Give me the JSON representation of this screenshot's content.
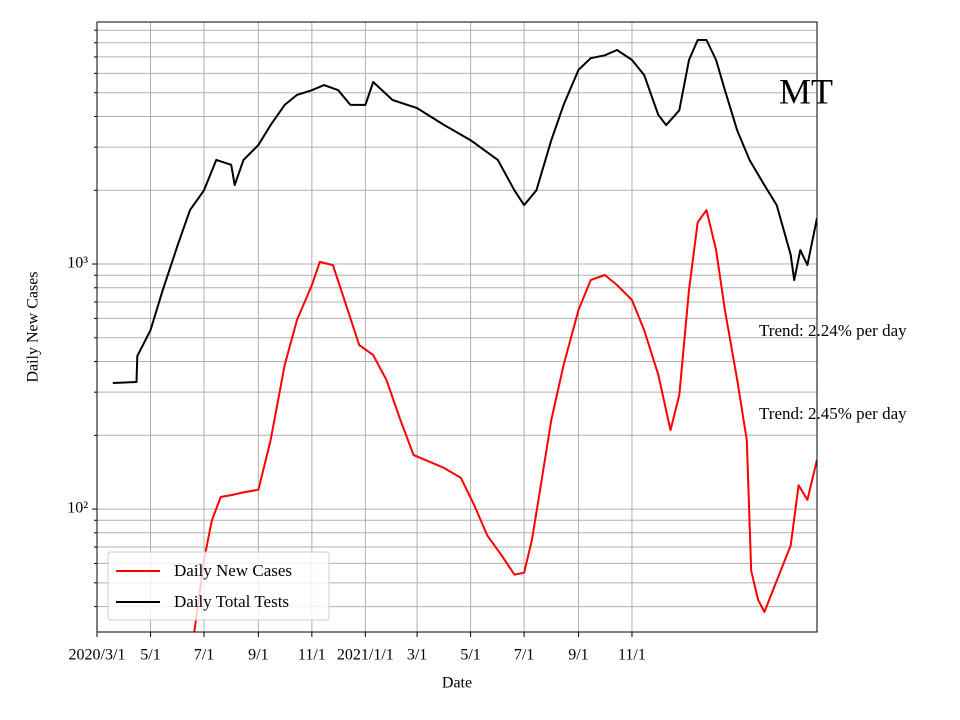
{
  "chart_data": {
    "type": "line",
    "title": "MT",
    "x_label": "Date",
    "y_label": "Daily New Cases",
    "log_y": true,
    "grid": true,
    "legend": "lower left",
    "annotations": [
      "Trend: 2.24% per day",
      "Trend: 2.45% per day"
    ],
    "xlim": [
      "2020-03-01",
      "2022-05-31"
    ],
    "xticks": [
      {
        "value": "2020-03-01",
        "label": "2020/3/1"
      },
      {
        "value": "2020-05-01",
        "label": "5/1"
      },
      {
        "value": "2020-07-01",
        "label": "7/1"
      },
      {
        "value": "2020-09-01",
        "label": "9/1"
      },
      {
        "value": "2020-11-01",
        "label": "11/1"
      },
      {
        "value": "2021-01-01",
        "label": "2021/1/1"
      },
      {
        "value": "2021-03-01",
        "label": "3/1"
      },
      {
        "value": "2021-05-01",
        "label": "5/1"
      },
      {
        "value": "2021-07-01",
        "label": "7/1"
      },
      {
        "value": "2021-09-01",
        "label": "9/1"
      },
      {
        "value": "2021-11-01",
        "label": "11/1"
      }
    ],
    "ylim": [
      31.5,
      9720
    ],
    "yticks": [
      {
        "value": 100,
        "label": "10²"
      },
      {
        "value": 1000,
        "label": "10³"
      }
    ],
    "minor_yticks": [
      40,
      50,
      60,
      70,
      80,
      90,
      200,
      300,
      400,
      500,
      600,
      700,
      800,
      900,
      2000,
      3000,
      4000,
      5000,
      6000,
      7000,
      8000,
      9000
    ],
    "series": [
      {
        "name": "Daily New Cases",
        "color": "#ff0000",
        "x": [
          "2020-06-20",
          "2020-06-25",
          "2020-07-01",
          "2020-07-10",
          "2020-07-20",
          "2020-08-01",
          "2020-08-15",
          "2020-09-01",
          "2020-09-15",
          "2020-10-01",
          "2020-10-15",
          "2020-11-01",
          "2020-11-10",
          "2020-11-25",
          "2020-12-10",
          "2020-12-25",
          "2021-01-10",
          "2021-01-25",
          "2021-02-10",
          "2021-02-25",
          "2021-03-15",
          "2021-04-01",
          "2021-04-20",
          "2021-05-05",
          "2021-05-20",
          "2021-06-05",
          "2021-06-20",
          "2021-07-01",
          "2021-07-10",
          "2021-07-20",
          "2021-08-01",
          "2021-08-15",
          "2021-09-01",
          "2021-09-15",
          "2021-10-01",
          "2021-10-15",
          "2021-11-01",
          "2021-11-15",
          "2021-12-01",
          "2021-12-15",
          "2021-12-25",
          "2022-01-05",
          "2022-01-15",
          "2022-01-25",
          "2022-02-05",
          "2022-02-15",
          "2022-03-01",
          "2022-03-12",
          "2022-03-17",
          "2022-03-25",
          "2022-04-01",
          "2022-04-15",
          "2022-05-01",
          "2022-05-10",
          "2022-05-20",
          "2022-05-31"
        ],
        "values": [
          31.6,
          42.5,
          62,
          90,
          112,
          114,
          117,
          120,
          191,
          387,
          591,
          821,
          1020,
          990,
          680,
          467,
          425,
          337,
          231,
          166,
          156,
          147,
          134,
          104,
          78,
          65,
          54,
          55,
          75,
          125,
          231,
          387,
          649,
          860,
          902,
          821,
          713,
          537,
          353,
          210,
          292,
          784,
          1480,
          1660,
          1140,
          649,
          337,
          191,
          56,
          42.5,
          38,
          51,
          71,
          125,
          109,
          159
        ]
      },
      {
        "name": "Daily Total Tests",
        "color": "#000000",
        "x": [
          "2020-03-19",
          "2020-04-15",
          "2020-04-16",
          "2020-05-01",
          "2020-05-15",
          "2020-06-01",
          "2020-06-15",
          "2020-07-01",
          "2020-07-15",
          "2020-08-01",
          "2020-08-05",
          "2020-08-15",
          "2020-09-01",
          "2020-09-15",
          "2020-10-01",
          "2020-10-15",
          "2020-11-01",
          "2020-11-15",
          "2020-12-01",
          "2020-12-15",
          "2021-01-01",
          "2021-01-10",
          "2021-02-01",
          "2021-03-01",
          "2021-04-01",
          "2021-05-01",
          "2021-06-01",
          "2021-06-20",
          "2021-07-01",
          "2021-07-15",
          "2021-08-01",
          "2021-08-15",
          "2021-09-01",
          "2021-09-15",
          "2021-10-01",
          "2021-10-15",
          "2021-11-01",
          "2021-11-15",
          "2021-12-01",
          "2021-12-10",
          "2021-12-25",
          "2022-01-05",
          "2022-01-15",
          "2022-01-25",
          "2022-02-05",
          "2022-02-15",
          "2022-03-01",
          "2022-03-15",
          "2022-04-01",
          "2022-04-15",
          "2022-05-01",
          "2022-05-05",
          "2022-05-12",
          "2022-05-20",
          "2022-05-31"
        ],
        "values": [
          327,
          330,
          421,
          537,
          784,
          1195,
          1660,
          2000,
          2660,
          2540,
          2100,
          2660,
          3060,
          3690,
          4460,
          4900,
          5120,
          5370,
          5120,
          4460,
          4460,
          5530,
          4670,
          4330,
          3690,
          3200,
          2660,
          2000,
          1740,
          2000,
          3200,
          4460,
          6200,
          6920,
          7110,
          7470,
          6800,
          5900,
          4060,
          3690,
          4240,
          6800,
          8210,
          8210,
          6800,
          5120,
          3510,
          2660,
          2100,
          1740,
          1090,
          860,
          1140,
          990,
          1540
        ]
      }
    ]
  }
}
